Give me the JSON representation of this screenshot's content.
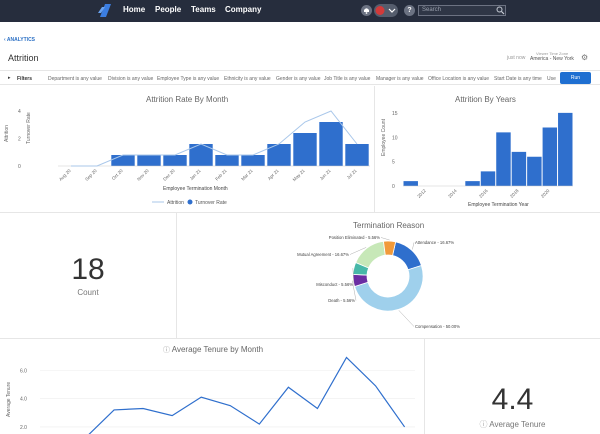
{
  "nav": {
    "items": [
      "Home",
      "People",
      "Teams",
      "Company"
    ],
    "help": "?",
    "search_placeholder": "Search"
  },
  "header": {
    "back_link": "‹ ANALYTICS",
    "title": "Attrition",
    "just_now": "just now",
    "tz_label": "Viewer Time Zone",
    "tz_value": "America - New York"
  },
  "filters": {
    "label": "Filters",
    "items": [
      "Department is any value",
      "Division is any value",
      "Employee Type is any value",
      "Ethnicity is any value",
      "Gender is any value",
      "Job Title is any value",
      "Manager is any value",
      "Office Location is any value",
      "Start Date is any time",
      "Use"
    ],
    "run_label": "Run"
  },
  "colors": {
    "bar": "#2f6fcd",
    "line": "#a9c7ea",
    "nav": "#262d3d",
    "accent": "#1f6fd1"
  },
  "charts": {
    "rate_by_month": {
      "title": "Attrition Rate By Month",
      "xlabel": "Employee Termination Month",
      "ylabel_left": "Attrition",
      "ylabel_right": "Turnover Rate",
      "yticks": [
        "0",
        "2",
        "4"
      ],
      "legend": [
        "Attrition",
        "Turnover Rate"
      ],
      "chart_data": {
        "type": "bar",
        "categories": [
          "Aug 20",
          "Sep 20",
          "Oct 20",
          "Nov 20",
          "Dec 20",
          "Jan 21",
          "Feb 21",
          "Mar 21",
          "Apr 21",
          "May 21",
          "Jun 21",
          "Jul 21"
        ],
        "series": [
          {
            "name": "Turnover Rate",
            "values": [
              0,
              0,
              1,
              1,
              1,
              2,
              1,
              1,
              2,
              3,
              4,
              2
            ]
          },
          {
            "name": "Attrition",
            "values": [
              0,
              0,
              1,
              1,
              1,
              2,
              1,
              1,
              2,
              4,
              5,
              2
            ]
          }
        ],
        "ylim": [
          0,
          5
        ]
      }
    },
    "by_years": {
      "title": "Attrition By Years",
      "xlabel": "Employee Termination Year",
      "ylabel": "Employee Count",
      "yticks": [
        "0",
        "5",
        "10",
        "15"
      ],
      "xticks": [
        "2012",
        "2014",
        "2016",
        "2018",
        "2020"
      ],
      "chart_data": {
        "type": "bar",
        "categories": [
          "2011",
          "2012",
          "2013",
          "2014",
          "2015",
          "2016",
          "2017",
          "2018",
          "2019",
          "2020",
          "2021"
        ],
        "values": [
          1,
          0,
          0,
          0,
          1,
          3,
          11,
          7,
          6,
          12,
          15
        ],
        "ylim": [
          0,
          16
        ]
      }
    },
    "count": {
      "value": "18",
      "label": "Count"
    },
    "termination_reason": {
      "title": "Termination Reason",
      "chart_data": {
        "type": "pie",
        "slices": [
          {
            "label": "Attendance - 16.67%",
            "value": 16.67,
            "color": "#2f6fcd"
          },
          {
            "label": "Compensation - 50.00%",
            "value": 50.0,
            "color": "#9fd0ec"
          },
          {
            "label": "Death - 5.56%",
            "value": 5.56,
            "color": "#6a2da3"
          },
          {
            "label": "Misconduct - 5.56%",
            "value": 5.56,
            "color": "#47b8a8"
          },
          {
            "label": "Mutual Agreement - 16.67%",
            "value": 16.67,
            "color": "#c7e8b8"
          },
          {
            "label": "Position Eliminated - 5.56%",
            "value": 5.56,
            "color": "#f19a3a"
          }
        ]
      }
    },
    "avg_tenure_month": {
      "title": "Average Tenure by Month",
      "ylabel": "Average Tenure",
      "yticks": [
        "2.0",
        "4.0",
        "6.0"
      ],
      "chart_data": {
        "type": "line",
        "x": [
          1,
          2,
          3,
          4,
          5,
          6,
          7,
          8,
          9,
          10,
          11,
          12
        ],
        "values": [
          1.2,
          3.2,
          3.3,
          2.8,
          4.1,
          3.5,
          2.2,
          4.8,
          3.3,
          6.9,
          4.9,
          2.0
        ],
        "ylim": [
          1.5,
          7.5
        ]
      }
    },
    "avg_tenure": {
      "value": "4.4",
      "label": "Average Tenure"
    }
  }
}
